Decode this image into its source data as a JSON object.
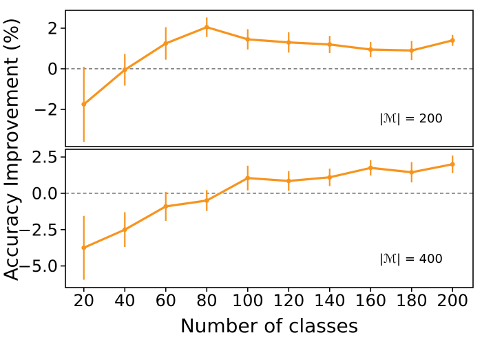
{
  "colors": {
    "series": "#f7941e",
    "zero_line": "#3d3d3d",
    "axis": "#000000",
    "text": "#000000",
    "background": "#ffffff"
  },
  "chart_data": {
    "type": "line",
    "title": "",
    "xlabel": "Number of classes",
    "ylabel": "Accuracy Improvement (%)",
    "x": [
      20,
      40,
      60,
      80,
      100,
      120,
      140,
      160,
      180,
      200
    ],
    "xtick_labels": [
      "20",
      "40",
      "60",
      "80",
      "100",
      "120",
      "140",
      "160",
      "180",
      "200"
    ],
    "xlim": [
      11,
      210
    ],
    "grid": false,
    "legend_position": "none",
    "panels": [
      {
        "label": "|ℳ| = 200",
        "ylim": [
          -3.83,
          2.88
        ],
        "yticks": [
          2,
          0,
          -2
        ],
        "ytick_labels": [
          "2",
          "0",
          "−2"
        ],
        "zero_reference_line": true,
        "series": {
          "name": "accuracy-improvement-m200",
          "y": [
            -1.75,
            -0.05,
            1.25,
            2.05,
            1.45,
            1.3,
            1.2,
            0.95,
            0.9,
            1.4
          ],
          "yerr": [
            1.85,
            0.78,
            0.8,
            0.48,
            0.5,
            0.5,
            0.42,
            0.37,
            0.47,
            0.27
          ]
        }
      },
      {
        "label": "|ℳ| = 400",
        "ylim": [
          -6.49,
          3.03
        ],
        "yticks": [
          2.5,
          0,
          -2.5,
          -5
        ],
        "ytick_labels": [
          "2.5",
          "0.0",
          "−2.5",
          "−5.0"
        ],
        "zero_reference_line": true,
        "series": {
          "name": "accuracy-improvement-m400",
          "y": [
            -3.75,
            -2.5,
            -0.9,
            -0.5,
            1.05,
            0.85,
            1.1,
            1.75,
            1.45,
            2.0
          ],
          "yerr": [
            2.2,
            1.2,
            1.0,
            0.72,
            0.85,
            0.68,
            0.6,
            0.53,
            0.7,
            0.6
          ]
        }
      }
    ]
  }
}
